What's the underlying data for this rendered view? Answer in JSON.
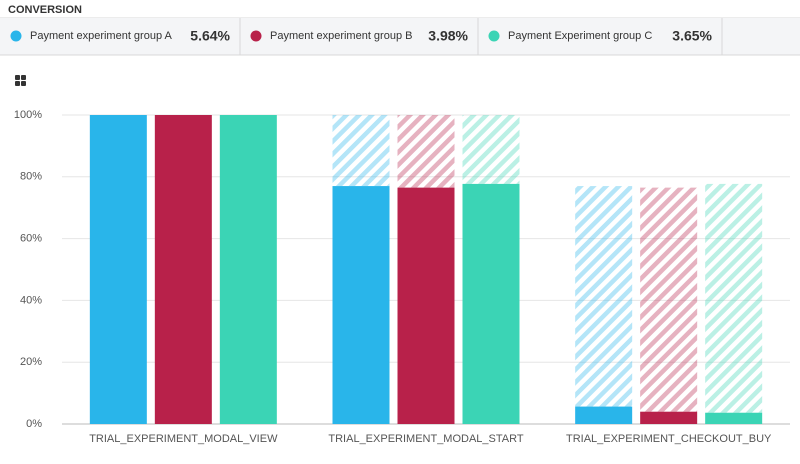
{
  "chart_data": {
    "type": "funnel",
    "title": "CONVERSION",
    "categories": [
      "TRIAL_EXPERIMENT_MODAL_VIEW",
      "TRIAL_EXPERIMENT_MODAL_START",
      "TRIAL_EXPERIMENT_CHECKOUT_BUY"
    ],
    "series": [
      {
        "name": "Payment experiment group A",
        "color": "#29b5ea",
        "values": [
          100,
          77,
          5.64
        ],
        "summary": "5.64%"
      },
      {
        "name": "Payment experiment group B",
        "color": "#b8214a",
        "values": [
          100,
          76.5,
          3.98
        ],
        "summary": "3.98%"
      },
      {
        "name": "Payment Experiment group C",
        "color": "#3bd4b5",
        "values": [
          100,
          77.7,
          3.65
        ],
        "summary": "3.65%"
      }
    ],
    "ylim": [
      0,
      100
    ],
    "yticks": [
      {
        "value": 0,
        "label": "0%"
      },
      {
        "value": 20,
        "label": "20%"
      },
      {
        "value": 40,
        "label": "40%"
      },
      {
        "value": 60,
        "label": "60%"
      },
      {
        "value": 80,
        "label": "80%"
      },
      {
        "value": 100,
        "label": "100%"
      }
    ],
    "grid": true
  }
}
